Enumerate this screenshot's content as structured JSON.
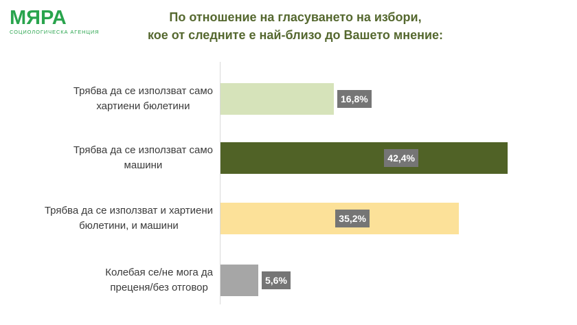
{
  "logo": {
    "name": "МЯРА",
    "tagline": "СОЦИОЛОГИЧЕСКА АГЕНЦИЯ",
    "brand_color": "#29a44d"
  },
  "title": {
    "line1": "По отношение на гласуването на избори,",
    "line2": "кое от следните е най-близо до Вашето мнение:",
    "color": "#55682f"
  },
  "chart_data": {
    "type": "bar",
    "orientation": "horizontal",
    "title": "По отношение на гласуването на избори, кое от следните е най-близо до Вашето мнение:",
    "xlabel": "",
    "ylabel": "",
    "xlim": [
      0,
      50
    ],
    "grid": false,
    "legend": false,
    "axis_line_color": "#d9d9d9",
    "value_chip_bg": "#757575",
    "value_chip_text_color": "#ffffff",
    "categories": [
      "Трябва да се използват само хартиени бюлетини",
      "Трябва да се използват само машини",
      "Трябва да се използват и хартиени бюлетини, и машини",
      "Колебая се/не мога да преценя/без отговор"
    ],
    "values": [
      16.8,
      42.4,
      35.2,
      5.6
    ],
    "bars": [
      {
        "label_lines": [
          "Трябва да се използват само",
          "хартиени бюлетини"
        ],
        "value": 16.8,
        "value_label": "16,8%",
        "color": "#d6e3ba",
        "value_label_position": "outside"
      },
      {
        "label_lines": [
          "Трябва да се използват само",
          "машини"
        ],
        "value": 42.4,
        "value_label": "42,4%",
        "color": "#506226",
        "value_label_position": "inside"
      },
      {
        "label_lines": [
          "Трябва да се използват и хартиени",
          "бюлетини, и машини"
        ],
        "value": 35.2,
        "value_label": "35,2%",
        "color": "#fce199",
        "value_label_position": "inside"
      },
      {
        "label_lines": [
          "Колебая се/не мога да",
          "преценя/без отговор"
        ],
        "value": 5.6,
        "value_label": "5,6%",
        "color": "#a6a6a6",
        "value_label_position": "outside"
      }
    ]
  }
}
